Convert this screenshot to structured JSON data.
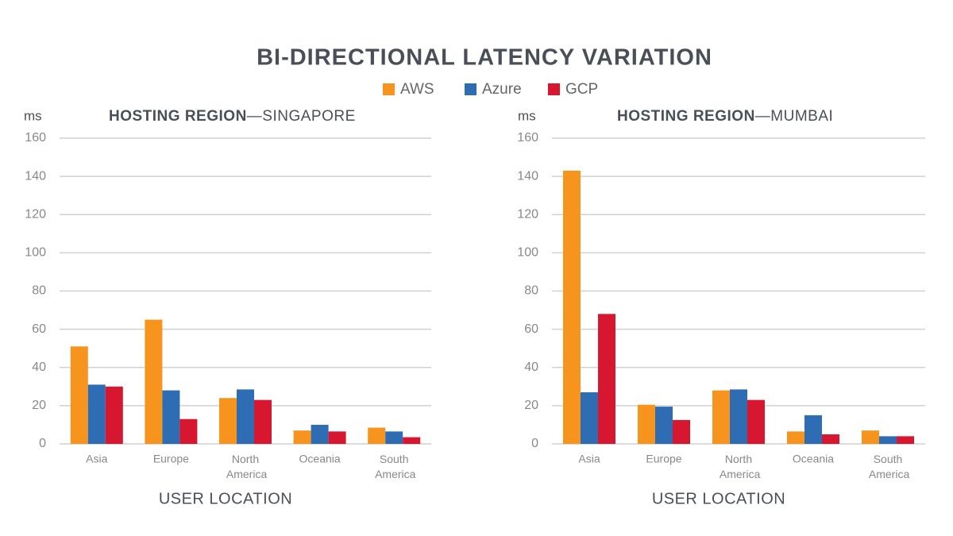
{
  "title": "BI-DIRECTIONAL LATENCY VARIATION",
  "chart_data": [
    {
      "type": "bar",
      "title_label": "HOSTING REGION",
      "title": "—SINGAPORE",
      "y_label": "ms",
      "x_label": "USER LOCATION",
      "categories": [
        "Asia",
        "Europe",
        "North America",
        "Oceania",
        "South America"
      ],
      "series": [
        {
          "name": "AWS",
          "color": "#f7941d",
          "values": [
            51,
            65,
            24,
            7,
            8.5
          ]
        },
        {
          "name": "Azure",
          "color": "#2e6db4",
          "values": [
            31,
            28,
            28.5,
            10,
            6.5
          ]
        },
        {
          "name": "GCP",
          "color": "#d7172f",
          "values": [
            30,
            13,
            23,
            6.5,
            3.5
          ]
        }
      ],
      "ylim": [
        0,
        160
      ],
      "yticks": [
        0,
        20,
        40,
        60,
        80,
        100,
        120,
        140,
        160
      ],
      "grid": true
    },
    {
      "type": "bar",
      "title_label": "HOSTING REGION",
      "title": "—MUMBAI",
      "y_label": "ms",
      "x_label": "USER LOCATION",
      "categories": [
        "Asia",
        "Europe",
        "North America",
        "Oceania",
        "South America"
      ],
      "series": [
        {
          "name": "AWS",
          "color": "#f7941d",
          "values": [
            143,
            20.5,
            28,
            6.5,
            7
          ]
        },
        {
          "name": "Azure",
          "color": "#2e6db4",
          "values": [
            27,
            19.5,
            28.5,
            15,
            4
          ]
        },
        {
          "name": "GCP",
          "color": "#d7172f",
          "values": [
            68,
            12.5,
            23,
            5,
            4
          ]
        }
      ],
      "ylim": [
        0,
        160
      ],
      "yticks": [
        0,
        20,
        40,
        60,
        80,
        100,
        120,
        140,
        160
      ],
      "grid": true
    }
  ]
}
